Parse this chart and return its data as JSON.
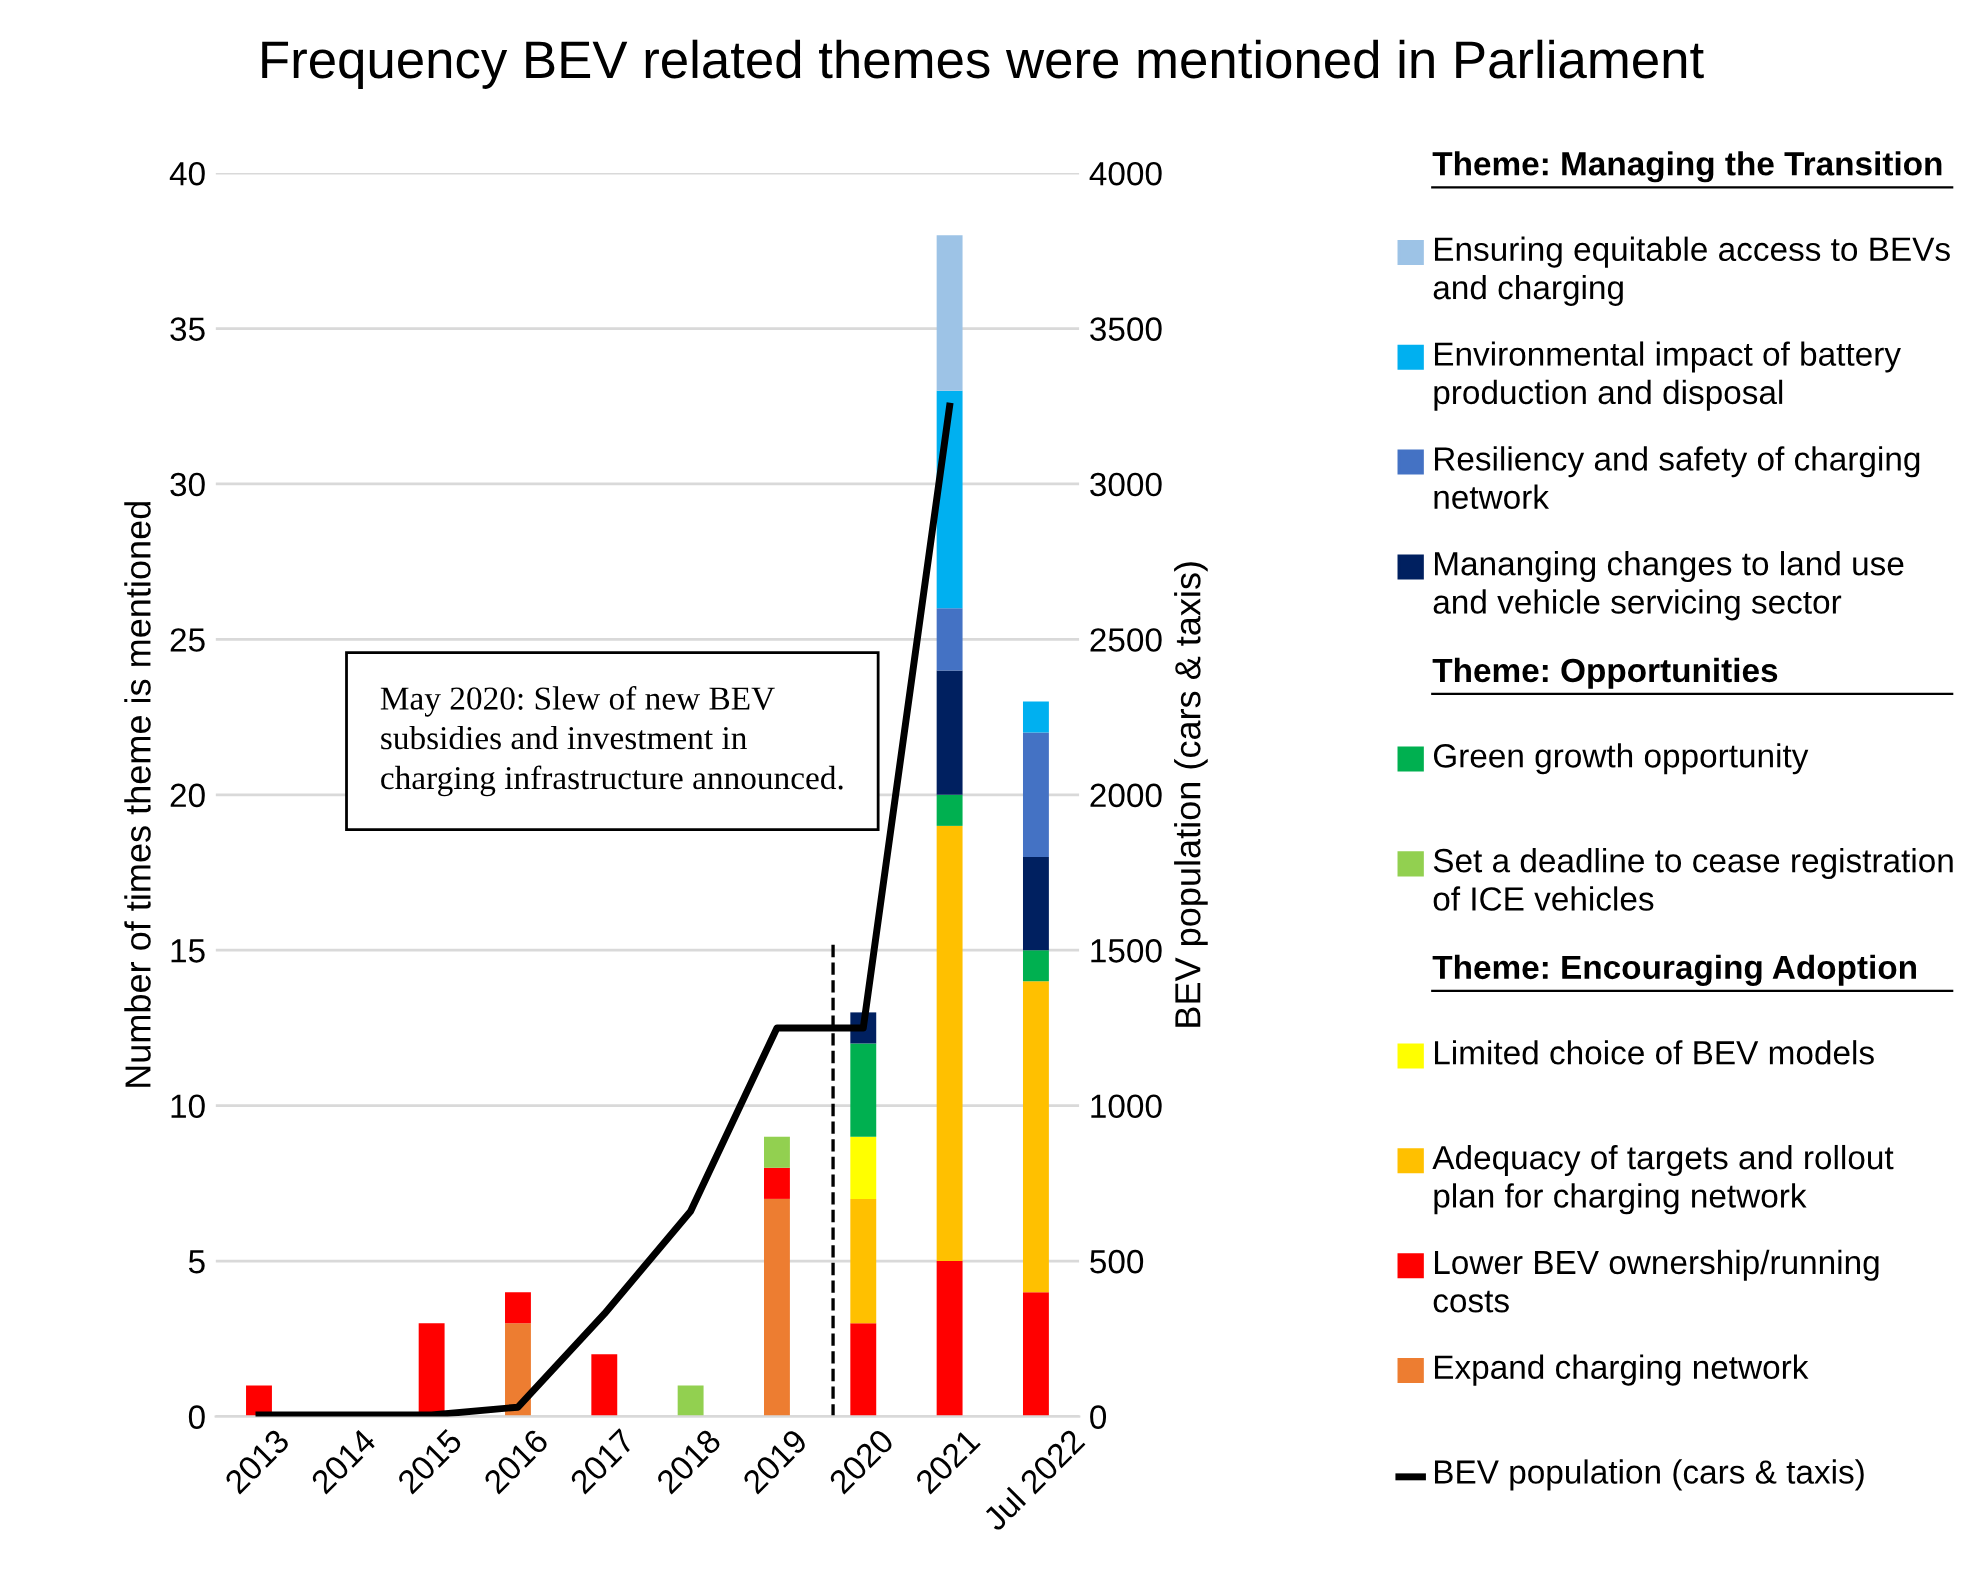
{
  "chart_data": {
    "type": "bar",
    "title": "Frequency BEV related themes were mentioned in Parliament",
    "ylabel": "Number of times theme is mentioned",
    "y2label": "BEV population (cars & taxis)",
    "categories": [
      "2013",
      "2014",
      "2015",
      "2016",
      "2017",
      "2018",
      "2019",
      "2020",
      "2021",
      "Jul 2022"
    ],
    "stacked": true,
    "series": [
      {
        "name": "Expand charging network",
        "color": "#ed7d31",
        "values": [
          0,
          0,
          0,
          3,
          0,
          0,
          7,
          0,
          0,
          0
        ]
      },
      {
        "name": "Lower BEV ownership/running costs",
        "color": "#ff0000",
        "values": [
          1,
          0,
          3,
          1,
          2,
          0,
          1,
          3,
          5,
          4
        ]
      },
      {
        "name": "Adequacy of targets and rollout plan for charging network",
        "color": "#ffc000",
        "values": [
          0,
          0,
          0,
          0,
          0,
          0,
          0,
          4,
          14,
          10
        ]
      },
      {
        "name": "Limited choice of BEV models",
        "color": "#ffff00",
        "values": [
          0,
          0,
          0,
          0,
          0,
          0,
          0,
          2,
          0,
          0
        ]
      },
      {
        "name": "Set a deadline to cease registration of ICE vehicles",
        "color": "#92d050",
        "values": [
          0,
          0,
          0,
          0,
          0,
          1,
          1,
          0,
          0,
          0
        ]
      },
      {
        "name": "Green growth opportunity",
        "color": "#00b050",
        "values": [
          0,
          0,
          0,
          0,
          0,
          0,
          0,
          3,
          1,
          1
        ]
      },
      {
        "name": "Mananging changes to land use and vehicle servicing sector",
        "color": "#002060",
        "values": [
          0,
          0,
          0,
          0,
          0,
          0,
          0,
          1,
          4,
          3
        ]
      },
      {
        "name": "Resiliency and safety of charging network",
        "color": "#4472c4",
        "values": [
          0,
          0,
          0,
          0,
          0,
          0,
          0,
          0,
          2,
          4
        ]
      },
      {
        "name": "Environmental impact of battery production and disposal",
        "color": "#00b0f0",
        "values": [
          0,
          0,
          0,
          0,
          0,
          0,
          0,
          0,
          7,
          1
        ]
      },
      {
        "name": "Ensuring equitable access to BEVs and charging",
        "color": "#9dc3e6",
        "values": [
          0,
          0,
          0,
          0,
          0,
          0,
          0,
          0,
          5,
          0
        ]
      },
      {
        "name": "BEV population (cars & taxis)",
        "type": "line",
        "axis": "y2",
        "color": "#000000",
        "values": [
          5,
          5,
          5,
          30,
          330,
          660,
          1250,
          1250,
          3250,
          null
        ]
      }
    ],
    "ylim": [
      0,
      40
    ],
    "yticks": [
      0,
      5,
      10,
      15,
      20,
      25,
      30,
      35,
      40
    ],
    "y2lim": [
      0,
      4000
    ],
    "y2ticks": [
      0,
      500,
      1000,
      1500,
      2000,
      2500,
      3000,
      3500,
      4000
    ],
    "grid": "y",
    "legend": "right",
    "marker": "none",
    "line_style": "solid",
    "annotations": [
      "Theme: Managing the Transition",
      "Theme: Opportunities",
      "Theme: Encouraging Adoption",
      "May 2020: Slew of new BEV subsidies and investment in charging infrastructure announced."
    ]
  }
}
